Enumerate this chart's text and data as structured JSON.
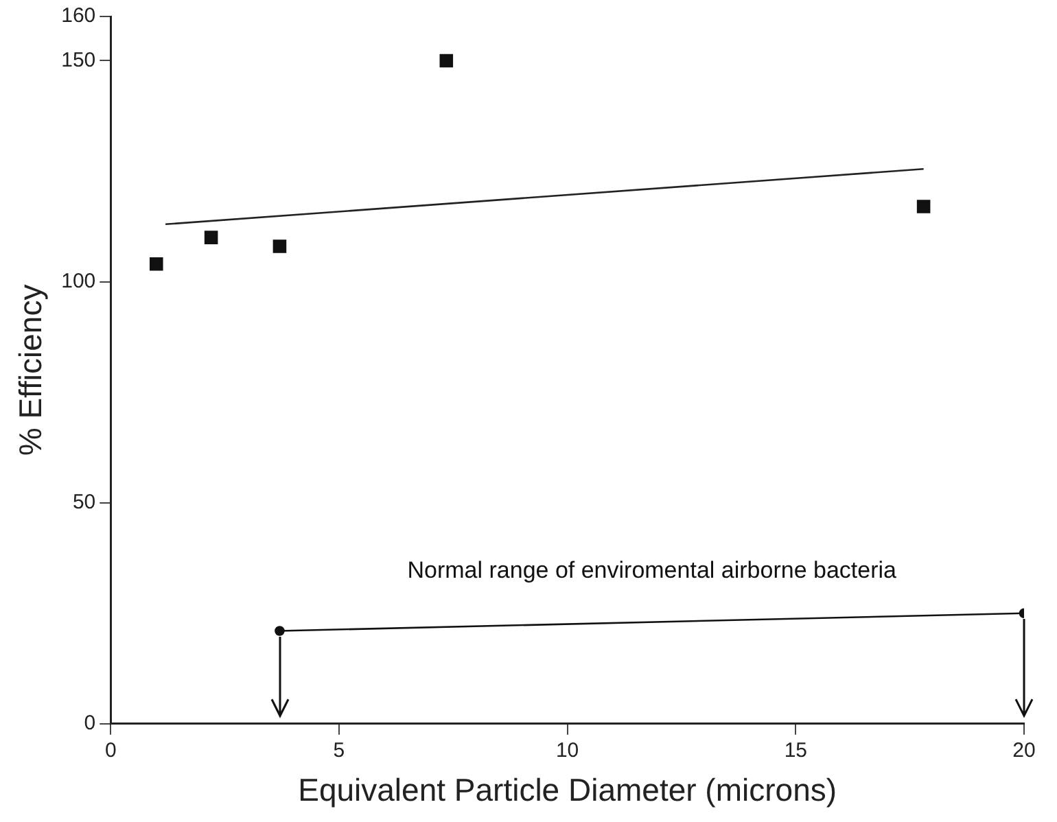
{
  "chart_data": {
    "type": "scatter",
    "xlabel": "Equivalent Particle Diameter (microns)",
    "ylabel": "% Efficiency",
    "series": [
      {
        "type": "scatter",
        "color": "#111111",
        "marker": "square",
        "x": [
          1.0,
          2.2,
          3.7,
          7.35,
          17.8
        ],
        "values": [
          104,
          110,
          108,
          150,
          117
        ]
      },
      {
        "type": "line",
        "color": "#222222",
        "marker": "none",
        "x": [
          1.2,
          17.8
        ],
        "values": [
          113,
          125.5
        ]
      },
      {
        "type": "line",
        "color": "#111111",
        "marker": "circle",
        "x": [
          3.7,
          20
        ],
        "values": [
          21,
          25
        ]
      }
    ],
    "xlim": [
      0,
      20
    ],
    "xticks": [
      0,
      5,
      10,
      15,
      20
    ],
    "ylim": [
      0,
      160
    ],
    "yticks": [
      0,
      50,
      100,
      150,
      160
    ],
    "annotations": [
      "Normal range of enviromental airborne bacteria"
    ],
    "grid": false,
    "legend": false
  }
}
